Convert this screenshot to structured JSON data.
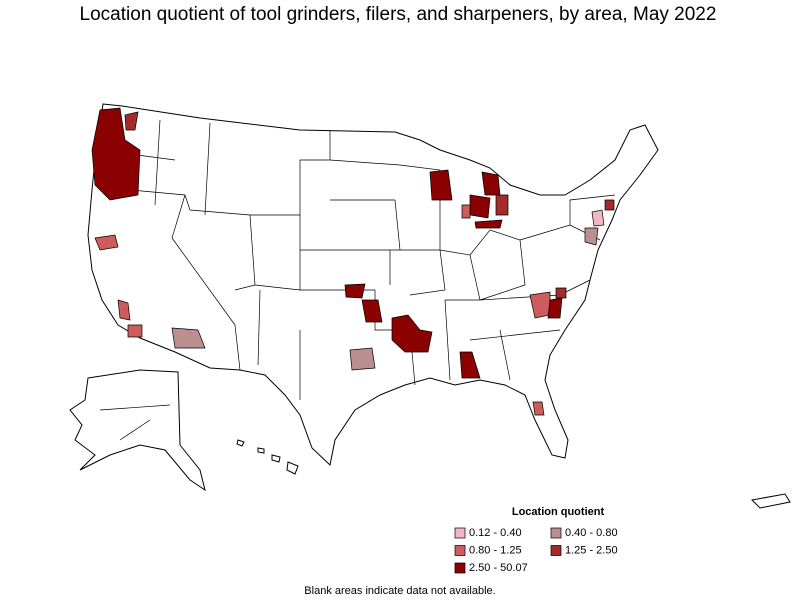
{
  "title": "Location quotient of tool grinders, filers, and sharpeners, by area, May 2022",
  "legend": {
    "title": "Location quotient",
    "items": [
      {
        "label": "0.12 - 0.40",
        "color": "#f4b6c2"
      },
      {
        "label": "0.40 - 0.80",
        "color": "#bc8f8f"
      },
      {
        "label": "0.80 - 1.25",
        "color": "#cd5c5c"
      },
      {
        "label": "1.25 - 2.50",
        "color": "#a52a2a"
      },
      {
        "label": "2.50 - 50.07",
        "color": "#8b0000"
      }
    ]
  },
  "note": "Blank areas indicate data not available."
}
